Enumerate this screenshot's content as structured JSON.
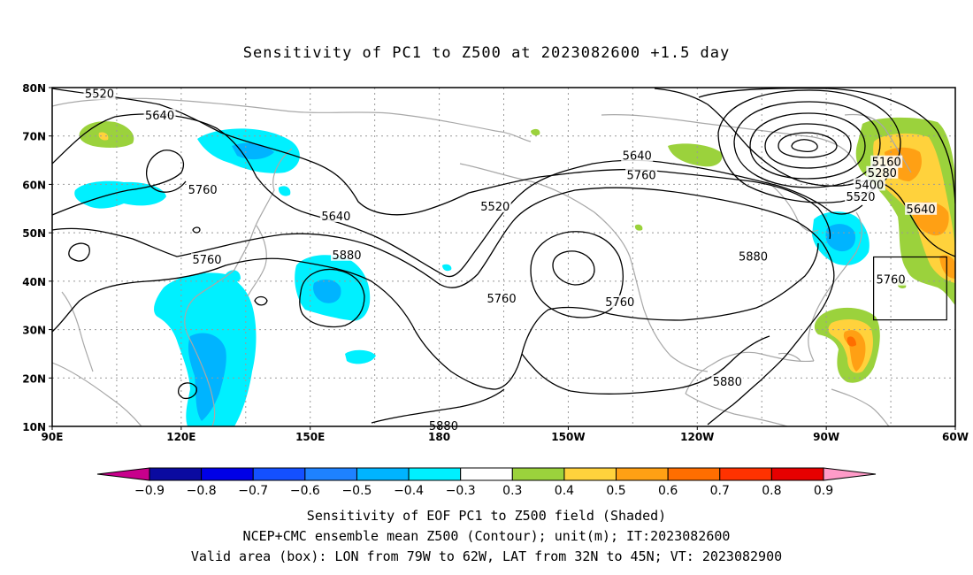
{
  "title": "Sensitivity of PC1 to Z500 at 2023082600 +1.5 day",
  "map": {
    "lon_range": [
      90,
      300
    ],
    "lat_range": [
      10,
      80
    ],
    "lat_ticks": [
      {
        "lat": 80,
        "label": "80N"
      },
      {
        "lat": 70,
        "label": "70N"
      },
      {
        "lat": 60,
        "label": "60N"
      },
      {
        "lat": 50,
        "label": "50N"
      },
      {
        "lat": 40,
        "label": "40N"
      },
      {
        "lat": 30,
        "label": "30N"
      },
      {
        "lat": 20,
        "label": "20N"
      },
      {
        "lat": 10,
        "label": "10N"
      }
    ],
    "lon_ticks": [
      {
        "lon": 90,
        "label": "90E"
      },
      {
        "lon": 120,
        "label": "120E"
      },
      {
        "lon": 150,
        "label": "150E"
      },
      {
        "lon": 180,
        "label": "180"
      },
      {
        "lon": 210,
        "label": "150W"
      },
      {
        "lon": 240,
        "label": "120W"
      },
      {
        "lon": 270,
        "label": "90W"
      },
      {
        "lon": 300,
        "label": "60W"
      }
    ],
    "contour_labels": [
      {
        "text": "5520",
        "lon": 101,
        "lat": 78.8
      },
      {
        "text": "5640",
        "lon": 115,
        "lat": 74.3
      },
      {
        "text": "5760",
        "lon": 125,
        "lat": 59
      },
      {
        "text": "5640",
        "lon": 156,
        "lat": 53.5
      },
      {
        "text": "5760",
        "lon": 126,
        "lat": 44.5
      },
      {
        "text": "5880",
        "lon": 158.5,
        "lat": 45.5
      },
      {
        "text": "5520",
        "lon": 193,
        "lat": 55.5
      },
      {
        "text": "5640",
        "lon": 226,
        "lat": 66
      },
      {
        "text": "5760",
        "lon": 227,
        "lat": 62
      },
      {
        "text": "5760",
        "lon": 194.5,
        "lat": 36.5
      },
      {
        "text": "5760",
        "lon": 222,
        "lat": 35.8
      },
      {
        "text": "5880",
        "lon": 253,
        "lat": 45.2
      },
      {
        "text": "5880",
        "lon": 247,
        "lat": 19.3
      },
      {
        "text": "5880",
        "lon": 181,
        "lat": 10.2
      },
      {
        "text": "5160",
        "lon": 284,
        "lat": 64.7
      },
      {
        "text": "5280",
        "lon": 283,
        "lat": 62.5
      },
      {
        "text": "5400",
        "lon": 280,
        "lat": 60
      },
      {
        "text": "5520",
        "lon": 278,
        "lat": 57.5
      },
      {
        "text": "5640",
        "lon": 292,
        "lat": 55
      },
      {
        "text": "5760",
        "lon": 285,
        "lat": 40.4
      }
    ],
    "valid_box": {
      "lon_min": 281,
      "lon_max": 298,
      "lat_min": 32,
      "lat_max": 45
    }
  },
  "colorbar": {
    "labels": [
      "−0.9",
      "−0.8",
      "−0.7",
      "−0.6",
      "−0.5",
      "−0.4",
      "−0.3",
      "0.3",
      "0.4",
      "0.5",
      "0.6",
      "0.7",
      "0.8",
      "0.9"
    ],
    "colors": [
      "#0a0aa0",
      "#0000e6",
      "#1450ff",
      "#1e82ff",
      "#00b4ff",
      "#00f0ff",
      "#ffffff",
      "#9bd23c",
      "#ffd23c",
      "#ffa014",
      "#ff6e00",
      "#ff3200",
      "#e60000"
    ],
    "left_arrow_color": "#c8008c",
    "right_arrow_color": "#ff9bc8"
  },
  "captions": [
    "Sensitivity of EOF PC1 to Z500 field (Shaded)",
    "NCEP+CMC ensemble mean Z500 (Contour); unit(m); IT:2023082600",
    "Valid area (box): LON from 79W to 62W, LAT from 32N to 45N; VT: 2023082900"
  ]
}
